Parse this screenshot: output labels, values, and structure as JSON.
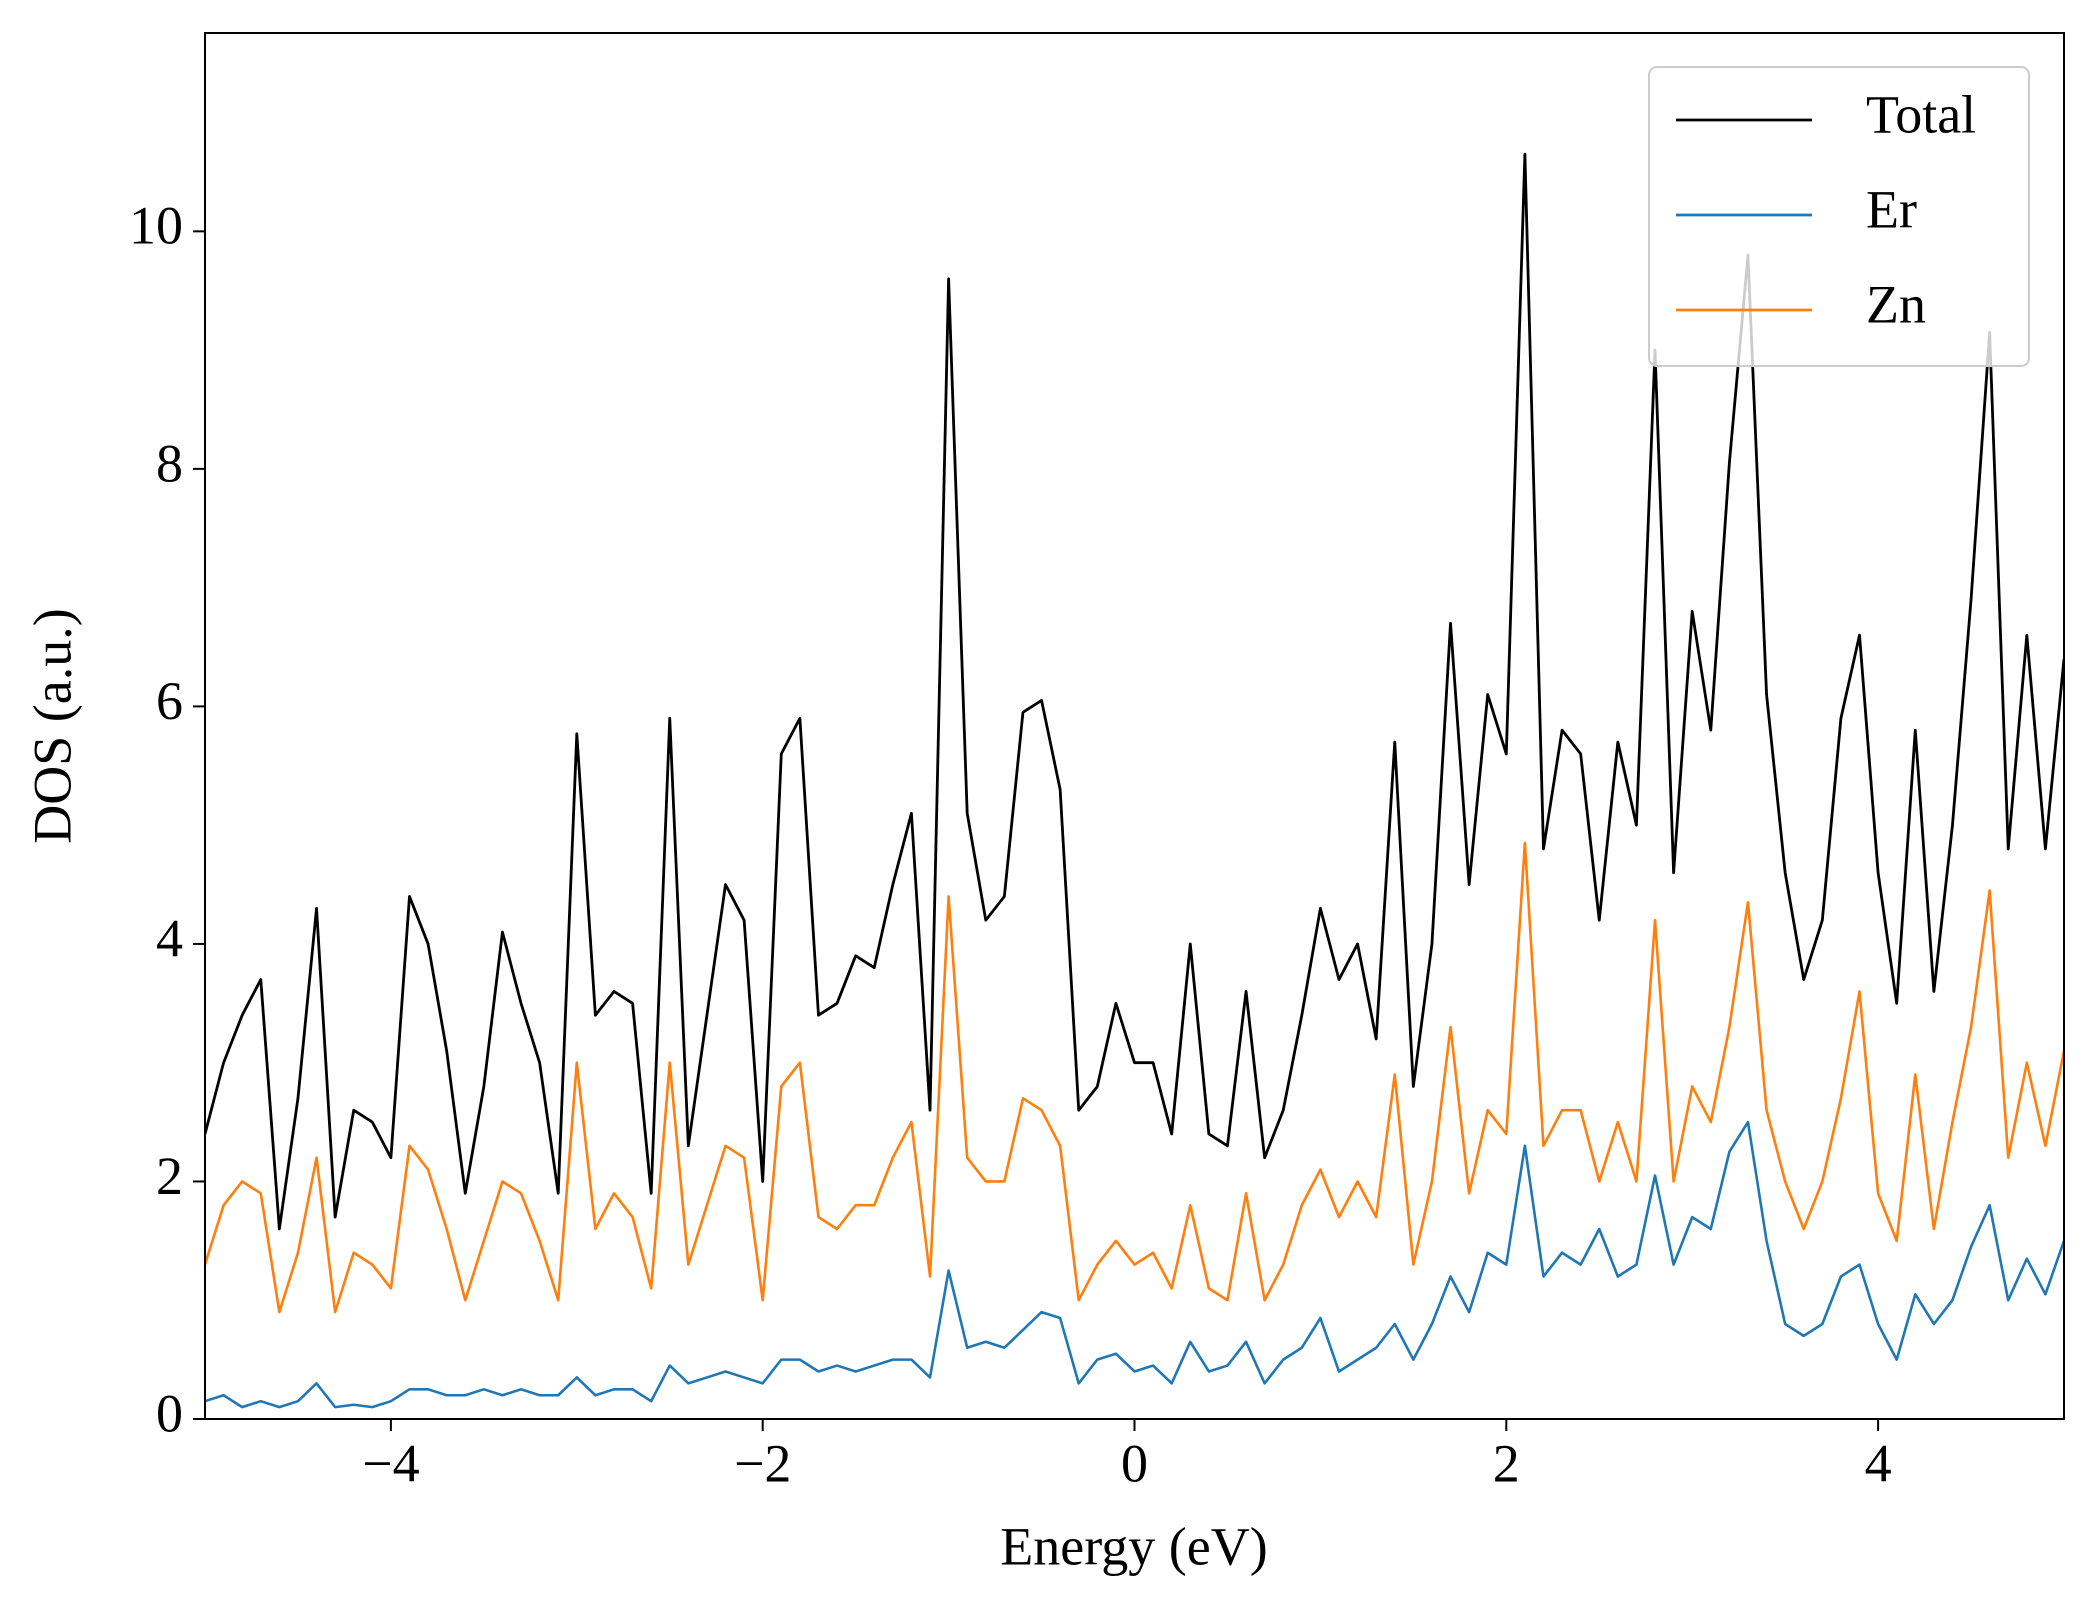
{
  "chart_data": {
    "type": "line",
    "xlabel": "Energy (eV)",
    "ylabel": "DOS (a.u.)",
    "x": [
      -5,
      -4.9,
      -4.8,
      -4.7,
      -4.6,
      -4.5,
      -4.4,
      -4.3,
      -4.2,
      -4.1,
      -4,
      -3.9,
      -3.8,
      -3.7,
      -3.6,
      -3.5,
      -3.4,
      -3.3,
      -3.2,
      -3.1,
      -3,
      -2.9,
      -2.8,
      -2.7,
      -2.6,
      -2.5,
      -2.4,
      -2.3,
      -2.2,
      -2.1,
      -2,
      -1.9,
      -1.8,
      -1.7,
      -1.6,
      -1.5,
      -1.4,
      -1.3,
      -1.2,
      -1.1,
      -1,
      -0.9,
      -0.8,
      -0.7,
      -0.6,
      -0.5,
      -0.4,
      -0.3,
      -0.2,
      -0.1,
      0,
      0.1,
      0.2,
      0.3,
      0.4,
      0.5,
      0.6,
      0.7,
      0.8,
      0.9,
      1,
      1.1,
      1.2,
      1.3,
      1.4,
      1.5,
      1.6,
      1.7,
      1.8,
      1.9,
      2,
      2.1,
      2.2,
      2.3,
      2.4,
      2.5,
      2.6,
      2.7,
      2.8,
      2.9,
      3,
      3.1,
      3.2,
      3.3,
      3.4,
      3.5,
      3.6,
      3.7,
      3.8,
      3.9,
      4,
      4.1,
      4.2,
      4.3,
      4.4,
      4.5,
      4.6,
      4.7,
      4.8,
      4.9,
      5
    ],
    "series": [
      {
        "name": "Total",
        "color": "#000000",
        "values": [
          2.4,
          3.0,
          3.4,
          3.7,
          1.6,
          2.7,
          4.3,
          1.7,
          2.6,
          2.5,
          2.2,
          4.4,
          4.0,
          3.1,
          1.9,
          2.8,
          4.1,
          3.5,
          3.0,
          1.9,
          5.77,
          3.4,
          3.6,
          3.5,
          1.9,
          5.9,
          2.3,
          3.4,
          4.5,
          4.2,
          2.0,
          5.6,
          5.9,
          3.4,
          3.5,
          3.9,
          3.8,
          4.5,
          5.1,
          2.6,
          9.6,
          5.1,
          4.2,
          4.4,
          5.95,
          6.05,
          5.3,
          2.6,
          2.8,
          3.5,
          3.0,
          3.0,
          2.4,
          4.0,
          2.4,
          2.3,
          3.6,
          2.2,
          2.6,
          3.4,
          4.3,
          3.7,
          4.0,
          3.2,
          5.7,
          2.8,
          4.0,
          6.7,
          4.5,
          6.1,
          5.6,
          10.65,
          4.8,
          5.8,
          5.6,
          4.2,
          5.7,
          5.0,
          9.0,
          4.6,
          6.8,
          5.8,
          8.05,
          9.8,
          6.1,
          4.6,
          3.7,
          4.2,
          5.9,
          6.6,
          4.6,
          3.5,
          5.8,
          3.6,
          5.0,
          6.9,
          9.15,
          4.8,
          6.6,
          4.8,
          6.4
        ]
      },
      {
        "name": "Er",
        "color": "#1f77b4",
        "values": [
          0.15,
          0.2,
          0.1,
          0.15,
          0.1,
          0.15,
          0.3,
          0.1,
          0.12,
          0.1,
          0.15,
          0.25,
          0.25,
          0.2,
          0.2,
          0.25,
          0.2,
          0.25,
          0.2,
          0.2,
          0.35,
          0.2,
          0.25,
          0.25,
          0.15,
          0.45,
          0.3,
          0.35,
          0.4,
          0.35,
          0.3,
          0.5,
          0.5,
          0.4,
          0.45,
          0.4,
          0.45,
          0.5,
          0.5,
          0.35,
          1.25,
          0.6,
          0.65,
          0.6,
          0.75,
          0.9,
          0.85,
          0.3,
          0.5,
          0.55,
          0.4,
          0.45,
          0.3,
          0.65,
          0.4,
          0.45,
          0.65,
          0.3,
          0.5,
          0.6,
          0.85,
          0.4,
          0.5,
          0.6,
          0.8,
          0.5,
          0.8,
          1.2,
          0.9,
          1.4,
          1.3,
          2.3,
          1.2,
          1.4,
          1.3,
          1.6,
          1.2,
          1.3,
          2.05,
          1.3,
          1.7,
          1.6,
          2.25,
          2.5,
          1.5,
          0.8,
          0.7,
          0.8,
          1.2,
          1.3,
          0.8,
          0.5,
          1.05,
          0.8,
          1.0,
          1.45,
          1.8,
          1.0,
          1.35,
          1.05,
          1.5
        ]
      },
      {
        "name": "Zn",
        "color": "#ff7f0e",
        "values": [
          1.3,
          1.8,
          2.0,
          1.9,
          0.9,
          1.4,
          2.2,
          0.9,
          1.4,
          1.3,
          1.1,
          2.3,
          2.1,
          1.6,
          1.0,
          1.5,
          2.0,
          1.9,
          1.5,
          1.0,
          3.0,
          1.6,
          1.9,
          1.7,
          1.1,
          3.0,
          1.3,
          1.8,
          2.3,
          2.2,
          1.0,
          2.8,
          3.0,
          1.7,
          1.6,
          1.8,
          1.8,
          2.2,
          2.5,
          1.2,
          4.4,
          2.2,
          2.0,
          2.0,
          2.7,
          2.6,
          2.3,
          1.0,
          1.3,
          1.5,
          1.3,
          1.4,
          1.1,
          1.8,
          1.1,
          1.0,
          1.9,
          1.0,
          1.3,
          1.8,
          2.1,
          1.7,
          2.0,
          1.7,
          2.9,
          1.3,
          2.0,
          3.3,
          1.9,
          2.6,
          2.4,
          4.85,
          2.3,
          2.6,
          2.6,
          2.0,
          2.5,
          2.0,
          4.2,
          2.0,
          2.8,
          2.5,
          3.3,
          4.35,
          2.6,
          2.0,
          1.6,
          2.0,
          2.7,
          3.6,
          1.9,
          1.5,
          2.9,
          1.6,
          2.5,
          3.3,
          4.45,
          2.2,
          3.0,
          2.3,
          3.1
        ]
      }
    ],
    "xlim": [
      -5,
      5
    ],
    "ylim": [
      0,
      11.67
    ],
    "xticks": [
      {
        "value": -4,
        "label": "−4"
      },
      {
        "value": -2,
        "label": "−2"
      },
      0,
      2,
      4
    ],
    "yticks": [
      0,
      2,
      4,
      6,
      8,
      10
    ],
    "grid": false,
    "legend": "upper right"
  }
}
